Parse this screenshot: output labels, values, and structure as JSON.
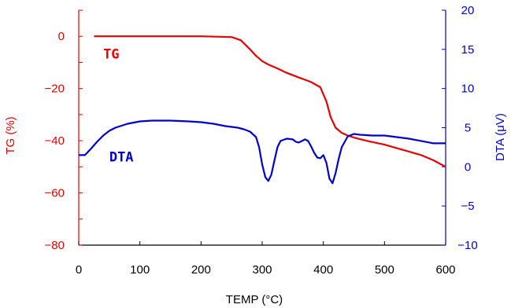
{
  "colors": {
    "tg": "#e60000",
    "dta": "#0000cc",
    "axis_x": "#000000"
  },
  "chart_data": {
    "type": "line",
    "xlabel": "TEMP (°C)",
    "ylabel_left": "TG (%)",
    "ylabel_right": "DTA (μV)",
    "xlim": [
      0,
      600
    ],
    "ylim_left": [
      -80,
      10
    ],
    "ylim_right": [
      -10,
      20
    ],
    "x_ticks": [
      0,
      100,
      200,
      300,
      400,
      500,
      600
    ],
    "y_left_ticks": [
      -80,
      -60,
      -40,
      -20,
      0
    ],
    "y_right_ticks": [
      -10,
      -5,
      0,
      5,
      10,
      15,
      20
    ],
    "grid": false,
    "series": [
      {
        "name": "TG",
        "axis": "left",
        "x": [
          25,
          50,
          100,
          150,
          200,
          250,
          265,
          280,
          290,
          300,
          310,
          325,
          340,
          360,
          380,
          395,
          405,
          412,
          420,
          430,
          440,
          450,
          470,
          500,
          530,
          560,
          580,
          600
        ],
        "y": [
          0,
          0,
          0,
          0,
          0,
          -0.3,
          -1.5,
          -5,
          -7.5,
          -9.5,
          -10.8,
          -12.3,
          -14,
          -15.8,
          -17.5,
          -19.5,
          -25,
          -31,
          -35,
          -37,
          -38,
          -38.8,
          -40,
          -41.5,
          -43.5,
          -45.5,
          -47.5,
          -50
        ]
      },
      {
        "name": "DTA",
        "axis": "right",
        "x": [
          0,
          10,
          20,
          30,
          40,
          50,
          60,
          80,
          100,
          120,
          150,
          180,
          200,
          220,
          240,
          260,
          270,
          280,
          290,
          295,
          300,
          305,
          310,
          315,
          320,
          325,
          330,
          340,
          350,
          355,
          360,
          365,
          370,
          375,
          380,
          385,
          390,
          395,
          400,
          405,
          410,
          415,
          420,
          425,
          430,
          440,
          450,
          460,
          480,
          500,
          520,
          540,
          560,
          580,
          600
        ],
        "y": [
          1.5,
          1.5,
          2.3,
          3.2,
          4,
          4.6,
          5,
          5.5,
          5.8,
          5.9,
          5.9,
          5.8,
          5.7,
          5.5,
          5.2,
          5,
          4.8,
          4.5,
          3.8,
          2.5,
          0.3,
          -1.3,
          -1.8,
          -1,
          0.8,
          2.5,
          3.3,
          3.6,
          3.5,
          3.2,
          3.1,
          3.3,
          3.5,
          3.3,
          2.6,
          1.8,
          1.2,
          1.1,
          1.5,
          0.5,
          -1.5,
          -2.1,
          -0.8,
          1,
          2.5,
          3.9,
          4.2,
          4.1,
          4,
          4,
          3.8,
          3.6,
          3.3,
          3,
          3
        ]
      }
    ],
    "annotations": [
      {
        "text": "TG",
        "x": 40,
        "y_left": -8.5,
        "color_key": "tg"
      },
      {
        "text": "DTA",
        "x": 50,
        "y_left": -48,
        "color_key": "dta"
      }
    ]
  }
}
